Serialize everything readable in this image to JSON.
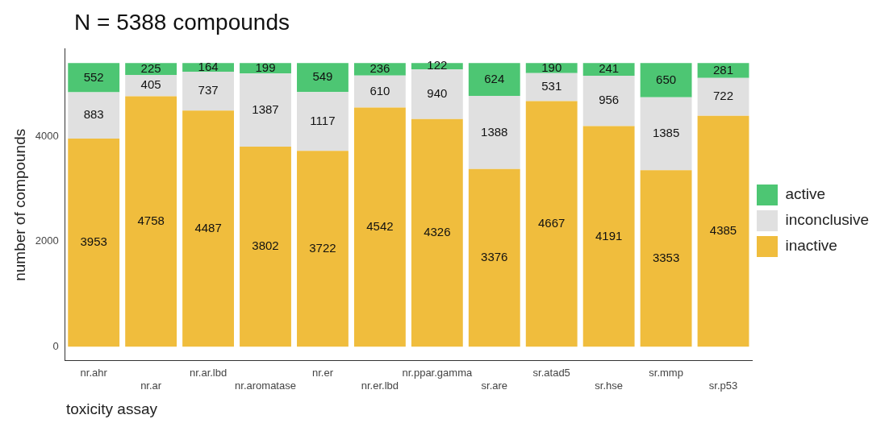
{
  "chart_data": {
    "type": "bar",
    "title": "N = 5388 compounds",
    "xlabel": "toxicity assay",
    "ylabel": "number of compounds",
    "categories": [
      "nr.ahr",
      "nr.ar",
      "nr.ar.lbd",
      "nr.aromatase",
      "nr.er",
      "nr.er.lbd",
      "nr.ppar.gamma",
      "sr.are",
      "sr.atad5",
      "sr.hse",
      "sr.mmp",
      "sr.p53"
    ],
    "stacked": true,
    "data_labels": true,
    "legend": "right",
    "grid": false,
    "ylim": [
      -269,
      5657
    ],
    "yticks": [
      0,
      2000,
      4000
    ],
    "series": [
      {
        "name": "inactive",
        "color": "#f0bd3d",
        "values": [
          3953,
          4758,
          4487,
          3802,
          3722,
          4542,
          4326,
          3376,
          4667,
          4191,
          3353,
          4385
        ]
      },
      {
        "name": "inconclusive",
        "color": "#e0e0e0",
        "values": [
          883,
          405,
          737,
          1387,
          1117,
          610,
          940,
          1388,
          531,
          956,
          1385,
          722
        ]
      },
      {
        "name": "active",
        "color": "#4dc673",
        "values": [
          552,
          225,
          164,
          199,
          549,
          236,
          122,
          624,
          190,
          241,
          650,
          281
        ]
      }
    ]
  }
}
